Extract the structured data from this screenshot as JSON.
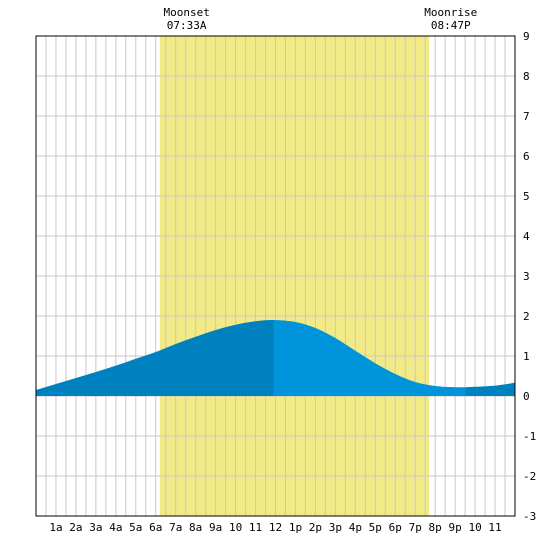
{
  "chart_data": {
    "type": "area",
    "title": "",
    "xlabel": "",
    "ylabel": "",
    "x_tick_labels": [
      "1a",
      "2a",
      "3a",
      "4a",
      "5a",
      "6a",
      "7a",
      "8a",
      "9a",
      "10",
      "11",
      "12",
      "1p",
      "2p",
      "3p",
      "4p",
      "5p",
      "6p",
      "7p",
      "8p",
      "9p",
      "10",
      "11"
    ],
    "xlim": [
      0,
      24
    ],
    "ylim": [
      -3,
      9
    ],
    "y_ticks": [
      -3,
      -2,
      -1,
      0,
      1,
      2,
      3,
      4,
      5,
      6,
      7,
      8,
      9
    ],
    "grid": true,
    "daylight_band": {
      "start_hour": 6.2,
      "end_hour": 19.7
    },
    "events": [
      {
        "name": "Moonset",
        "time": "07:33A",
        "hour": 7.55
      },
      {
        "name": "Moonrise",
        "time": "08:47P",
        "hour": 20.78
      }
    ],
    "series": [
      {
        "x": [
          0,
          1,
          2,
          3,
          4,
          5,
          6,
          7,
          8,
          9,
          10,
          11,
          11.9,
          13,
          14,
          15,
          16,
          17,
          18,
          19,
          20,
          21,
          21.5,
          22,
          23,
          24
        ],
        "values": [
          0.15,
          0.3,
          0.45,
          0.6,
          0.76,
          0.93,
          1.1,
          1.3,
          1.48,
          1.65,
          1.78,
          1.87,
          1.9,
          1.85,
          1.7,
          1.45,
          1.13,
          0.82,
          0.55,
          0.35,
          0.25,
          0.22,
          0.22,
          0.23,
          0.26,
          0.33
        ]
      }
    ],
    "colors": {
      "background": "#ffffff",
      "daylight": "#f2ea87",
      "grid": "#c8c8c8",
      "frame": "#000000",
      "tide_rising": "#0081bf",
      "tide_falling": "#0095db"
    }
  }
}
